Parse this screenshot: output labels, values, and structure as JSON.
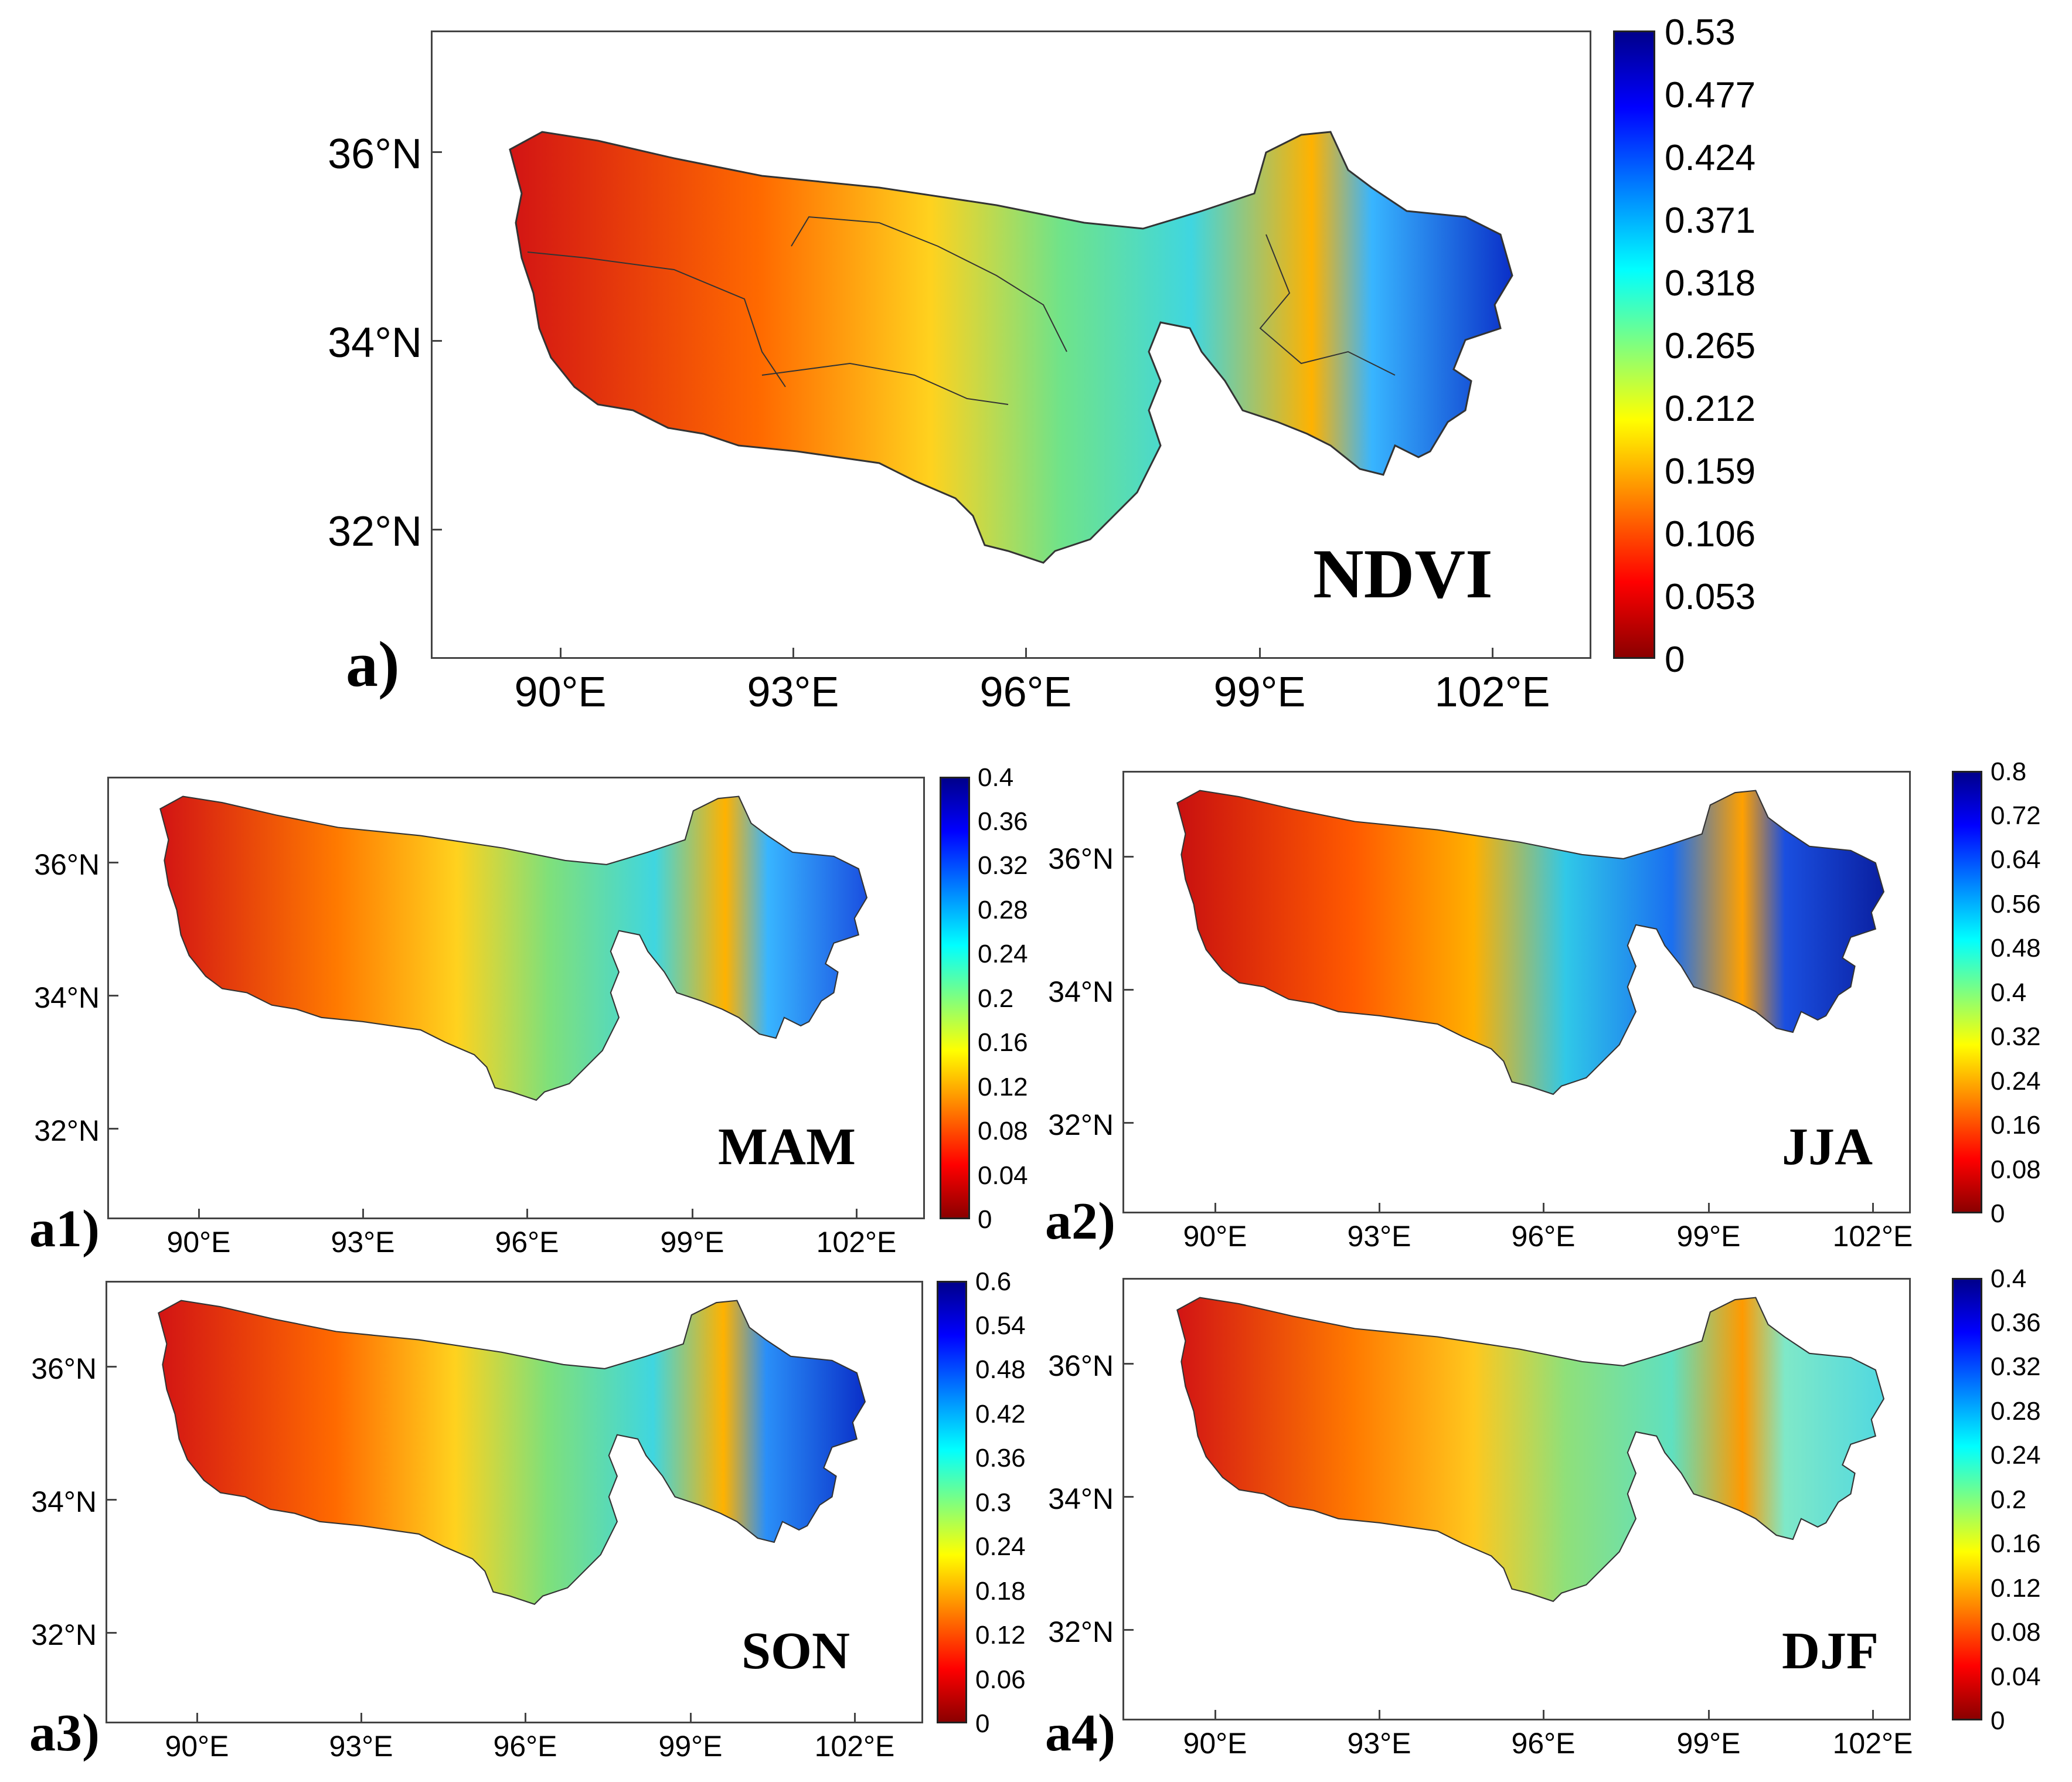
{
  "figure": {
    "panels": [
      {
        "id": "a",
        "panel_label": "a)",
        "variable_label": "NDVI",
        "colorbar_ticks": [
          "0.53",
          "0.477",
          "0.424",
          "0.371",
          "0.318",
          "0.265",
          "0.212",
          "0.159",
          "0.106",
          "0.053",
          "0"
        ],
        "lat_labels": [
          "36°N",
          "34°N",
          "32°N"
        ],
        "lon_labels": [
          "90°E",
          "93°E",
          "96°E",
          "99°E",
          "102°E"
        ],
        "colormap": "jet_r"
      },
      {
        "id": "a1",
        "panel_label": "a1)",
        "variable_label": "MAM",
        "colorbar_ticks": [
          "0.4",
          "0.36",
          "0.32",
          "0.28",
          "0.24",
          "0.2",
          "0.16",
          "0.12",
          "0.08",
          "0.04",
          "0"
        ],
        "lat_labels": [
          "36°N",
          "34°N",
          "32°N"
        ],
        "lon_labels": [
          "90°E",
          "93°E",
          "96°E",
          "99°E",
          "102°E"
        ],
        "colormap": "jet_r"
      },
      {
        "id": "a2",
        "panel_label": "a2)",
        "variable_label": "JJA",
        "colorbar_ticks": [
          "0.8",
          "0.72",
          "0.64",
          "0.56",
          "0.48",
          "0.4",
          "0.32",
          "0.24",
          "0.16",
          "0.08",
          "0"
        ],
        "lat_labels": [
          "36°N",
          "34°N",
          "32°N"
        ],
        "lon_labels": [
          "90°E",
          "93°E",
          "96°E",
          "99°E",
          "102°E"
        ],
        "colormap": "jet_r"
      },
      {
        "id": "a3",
        "panel_label": "a3)",
        "variable_label": "SON",
        "colorbar_ticks": [
          "0.6",
          "0.54",
          "0.48",
          "0.42",
          "0.36",
          "0.3",
          "0.24",
          "0.18",
          "0.12",
          "0.06",
          "0"
        ],
        "lat_labels": [
          "36°N",
          "34°N",
          "32°N"
        ],
        "lon_labels": [
          "90°E",
          "93°E",
          "96°E",
          "99°E",
          "102°E"
        ],
        "colormap": "jet_r"
      },
      {
        "id": "a4",
        "panel_label": "a4)",
        "variable_label": "DJF",
        "colorbar_ticks": [
          "0.4",
          "0.36",
          "0.32",
          "0.28",
          "0.24",
          "0.2",
          "0.16",
          "0.12",
          "0.08",
          "0.04",
          "0"
        ],
        "lat_labels": [
          "36°N",
          "34°N",
          "32°N"
        ],
        "lon_labels": [
          "90°E",
          "93°E",
          "96°E",
          "99°E",
          "102°E"
        ],
        "colormap": "jet_r"
      }
    ],
    "colors": {
      "low": "#8b0000",
      "red": "#ff0000",
      "orange": "#ff8c00",
      "yellow": "#ffff00",
      "green": "#7fff7f",
      "cyan": "#00ffff",
      "blue": "#0080ff",
      "high": "#00008b"
    }
  }
}
